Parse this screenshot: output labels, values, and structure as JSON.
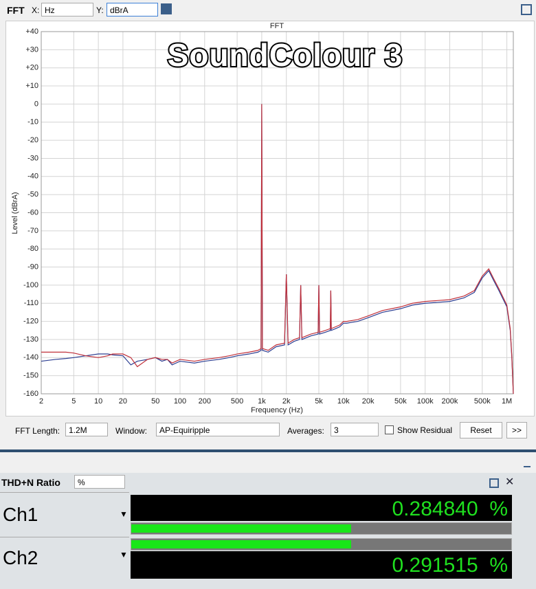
{
  "toolbar": {
    "title": "FFT",
    "x_label": "X:",
    "x_unit": "Hz",
    "y_label": "Y:",
    "y_unit": "dBrA"
  },
  "chart_data": {
    "type": "line",
    "title": "FFT",
    "watermark": "SoundColour 3",
    "x_label": "Frequency (Hz)",
    "y_label": "Level (dBrA)",
    "log_x": true,
    "grid": true,
    "xlim": [
      2,
      1200000
    ],
    "ylim": [
      -160,
      40
    ],
    "xticks": [
      2,
      5,
      10,
      20,
      50,
      100,
      200,
      500,
      {
        "value": 1000,
        "label": "1k"
      },
      {
        "value": 2000,
        "label": "2k"
      },
      {
        "value": 5000,
        "label": "5k"
      },
      {
        "value": 10000,
        "label": "10k"
      },
      {
        "value": 20000,
        "label": "20k"
      },
      {
        "value": 50000,
        "label": "50k"
      },
      {
        "value": 100000,
        "label": "100k"
      },
      {
        "value": 200000,
        "label": "200k"
      },
      {
        "value": 500000,
        "label": "500k"
      },
      {
        "value": 1000000,
        "label": "1M"
      }
    ],
    "yticks": [
      {
        "value": 40,
        "label": "+40"
      },
      {
        "value": 30,
        "label": "+30"
      },
      {
        "value": 20,
        "label": "+20"
      },
      {
        "value": 10,
        "label": "+10"
      },
      0,
      -10,
      -20,
      -30,
      -40,
      -50,
      -60,
      -70,
      -80,
      -90,
      -100,
      -110,
      -120,
      -130,
      -140,
      -150,
      -160
    ],
    "x": [
      2,
      3,
      4,
      5,
      7,
      10,
      13,
      15,
      20,
      25,
      30,
      40,
      50,
      60,
      70,
      80,
      100,
      150,
      200,
      300,
      400,
      500,
      700,
      900,
      980,
      1000,
      1020,
      1200,
      1500,
      1900,
      2000,
      2100,
      2500,
      2900,
      3000,
      3100,
      4000,
      4900,
      5000,
      5100,
      6000,
      6900,
      7000,
      7100,
      8000,
      9000,
      10000,
      11000,
      15000,
      20000,
      30000,
      50000,
      70000,
      100000,
      200000,
      300000,
      400000,
      500000,
      600000,
      700000,
      800000,
      1000000,
      1100000,
      1150000,
      1200000
    ],
    "series": [
      {
        "color": "#2b3d91",
        "values": [
          -142,
          -141,
          -140.5,
          -140,
          -139,
          -138,
          -138,
          -138.5,
          -139,
          -144,
          -142,
          -141,
          -140,
          -142,
          -141,
          -144,
          -142,
          -143,
          -142,
          -141,
          -140,
          -139,
          -138,
          -137,
          -136,
          0,
          -136,
          -137,
          -134,
          -133,
          -94,
          -133,
          -131,
          -130,
          -100,
          -130,
          -128,
          -127,
          -100,
          -127,
          -126,
          -125,
          -103,
          -125,
          -124,
          -123,
          -121,
          -121,
          -120,
          -118,
          -115,
          -113,
          -111,
          -110,
          -109,
          -107,
          -104,
          -96,
          -92,
          -98,
          -103,
          -112,
          -125,
          -140,
          -160
        ]
      },
      {
        "color": "#c0303a",
        "values": [
          -137,
          -137,
          -137,
          -137.5,
          -139,
          -140,
          -139,
          -138,
          -138,
          -140,
          -145,
          -141,
          -140,
          -141,
          -141,
          -143,
          -141,
          -142,
          -141,
          -140,
          -139,
          -138,
          -137,
          -136,
          -135,
          0,
          -135,
          -136,
          -133,
          -132,
          -94,
          -132,
          -130,
          -129,
          -100,
          -129,
          -127,
          -126,
          -100,
          -126,
          -125,
          -124,
          -103,
          -124,
          -123,
          -122,
          -120,
          -120,
          -119,
          -117,
          -114,
          -112,
          -110,
          -109,
          -108,
          -106,
          -103,
          -95,
          -91,
          -97,
          -102,
          -111,
          -124,
          -139,
          -160
        ]
      }
    ]
  },
  "controls": {
    "fft_length_label": "FFT Length:",
    "fft_length": "1.2M",
    "window_label": "Window:",
    "window": "AP-Equiripple",
    "averages_label": "Averages:",
    "averages": 3,
    "show_residual": "Show Residual",
    "reset": "Reset",
    "more": ">>"
  },
  "thd_panel": {
    "title": "THD+N Ratio",
    "unit": "%",
    "channels": [
      {
        "name": "Ch1",
        "value": "0.284840",
        "unit": "%"
      },
      {
        "name": "Ch2",
        "value": "0.291515",
        "unit": "%"
      }
    ]
  }
}
